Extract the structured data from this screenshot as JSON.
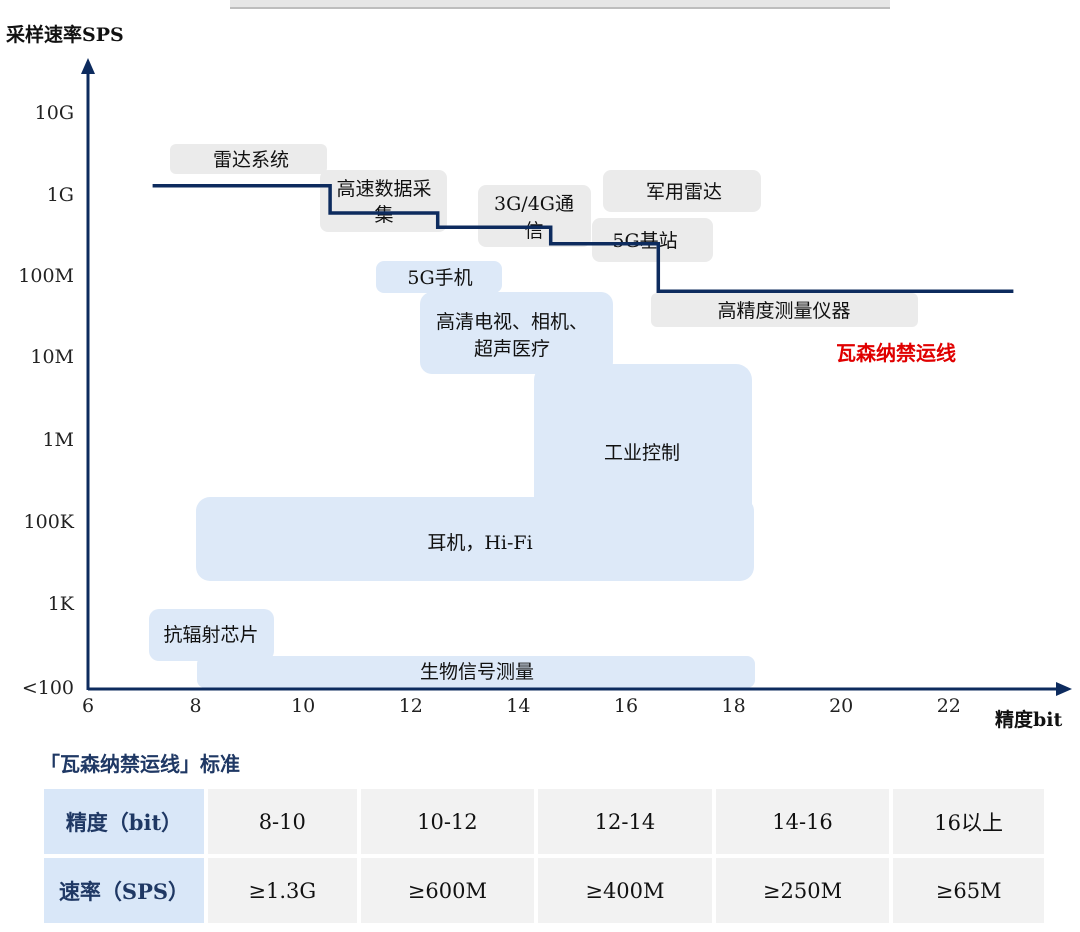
{
  "chart_data": {
    "type": "line",
    "ylabel": "采样速率SPS",
    "xlabel": "精度bit",
    "xlim": [
      6,
      23
    ],
    "x_ticks": [
      "6",
      "8",
      "10",
      "12",
      "14",
      "16",
      "18",
      "20",
      "22"
    ],
    "y_ticks": [
      "<100",
      "1K",
      "100K",
      "1M",
      "10M",
      "100M",
      "1G",
      "10G"
    ],
    "wassenaar_line": {
      "name": "瓦森纳禁运线",
      "color": "#e00000",
      "points": [
        {
          "x": 7.2,
          "y": "1.3G"
        },
        {
          "x": 10.5,
          "y": "1.3G"
        },
        {
          "x": 10.5,
          "y": "600M"
        },
        {
          "x": 12.5,
          "y": "600M"
        },
        {
          "x": 12.5,
          "y": "400M"
        },
        {
          "x": 14.6,
          "y": "400M"
        },
        {
          "x": 14.6,
          "y": "250M"
        },
        {
          "x": 16.6,
          "y": "250M"
        },
        {
          "x": 16.6,
          "y": "65M"
        },
        {
          "x": 23.2,
          "y": "65M"
        }
      ]
    },
    "gray_regions": [
      {
        "label": "雷达系统"
      },
      {
        "label": "高速数据采集"
      },
      {
        "label": "3G/4G通信"
      },
      {
        "label": "军用雷达"
      },
      {
        "label": "5G基站"
      },
      {
        "label": "高精度测量仪器"
      }
    ],
    "blue_regions": [
      {
        "label": "5G手机"
      },
      {
        "label": "高清电视、相机、超声医疗"
      },
      {
        "label": "工业控制"
      },
      {
        "label": "耳机，Hi-Fi"
      },
      {
        "label": "抗辐射芯片"
      },
      {
        "label": "生物信号测量"
      }
    ]
  },
  "table": {
    "title": "「瓦森纳禁运线」标准",
    "rows": [
      {
        "head": "精度（bit）",
        "cells": [
          "8-10",
          "10-12",
          "12-14",
          "14-16",
          "16以上"
        ]
      },
      {
        "head": "速率（SPS）",
        "cells": [
          "≥1.3G",
          "≥600M",
          "≥400M",
          "≥250M",
          "≥65M"
        ]
      }
    ]
  },
  "colors": {
    "axis": "#0d2b5e",
    "line": "#0d2b5e",
    "gray_region": "#ebebeb",
    "blue_region": "#dde9f8",
    "header_cell": "#d9e7f8",
    "cell": "#f2f2f2",
    "red_label": "#e00000"
  }
}
